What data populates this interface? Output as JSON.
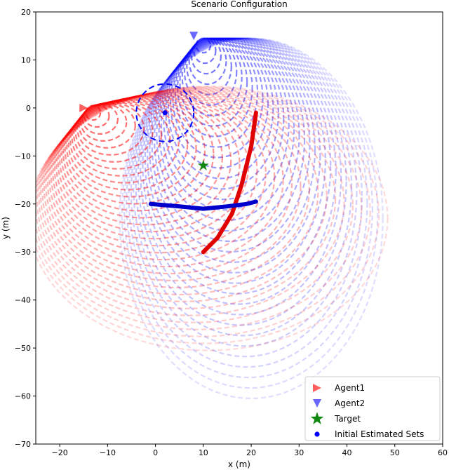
{
  "chart_data": {
    "type": "scatter",
    "title": "Scenario Configuration",
    "xlabel": "x (m)",
    "ylabel": "y (m)",
    "xlim": [
      -25,
      60
    ],
    "ylim": [
      -70,
      20
    ],
    "xticks": [
      -20,
      -10,
      0,
      10,
      20,
      30,
      40,
      50,
      60
    ],
    "yticks": [
      -70,
      -60,
      -50,
      -40,
      -30,
      -20,
      -10,
      0,
      10,
      20
    ],
    "grid": false,
    "legend_position": "lower-right",
    "series": [
      {
        "name": "Agent1",
        "marker": "triangle-right",
        "color": "#ff6060",
        "points": [
          [
            -15,
            0
          ]
        ]
      },
      {
        "name": "Agent2",
        "marker": "triangle-down",
        "color": "#6868ff",
        "points": [
          [
            8,
            15
          ]
        ]
      },
      {
        "name": "Target",
        "marker": "star",
        "color": "#118811",
        "points": [
          [
            10,
            -12
          ]
        ]
      },
      {
        "name": "Initial Estimated Sets",
        "marker": "circle",
        "color": "#0000ff",
        "points": [
          [
            2,
            -1
          ]
        ]
      }
    ],
    "estimated_set_circle": {
      "center": [
        2,
        -1
      ],
      "radius": 6,
      "color": "#0000ff"
    },
    "agent1_reachable_arcs": {
      "color": "#ff0000",
      "apex": [
        -15,
        0
      ]
    },
    "agent2_reachable_arcs": {
      "color": "#0000ff",
      "apex": [
        8,
        15
      ]
    },
    "agent1_boundary_curve": {
      "color": "#e00000",
      "points": [
        [
          21,
          -1
        ],
        [
          20,
          -8
        ],
        [
          18,
          -16
        ],
        [
          16,
          -22
        ],
        [
          13,
          -27
        ],
        [
          10,
          -30
        ]
      ]
    },
    "agent2_boundary_curve": {
      "color": "#0000cc",
      "points": [
        [
          -1,
          -20
        ],
        [
          5,
          -20.5
        ],
        [
          10,
          -21
        ],
        [
          15,
          -20.5
        ],
        [
          19,
          -20
        ],
        [
          21,
          -19.5
        ]
      ]
    }
  }
}
